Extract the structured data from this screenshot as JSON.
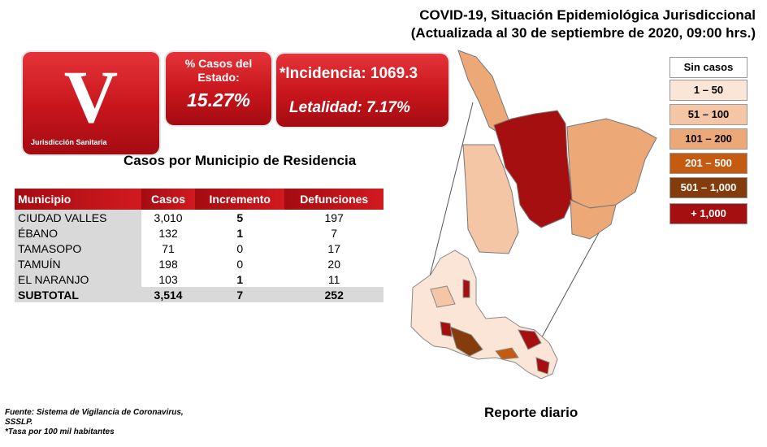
{
  "header": {
    "title_line1": "COVID-19, Situación Epidemiológica Jurisdiccional",
    "title_line2": "(Actualizada al 30 de septiembre de 2020, 09:00 hrs.)"
  },
  "jurisdiction": {
    "letter": "V",
    "label": "Jurisdicción Sanitaria"
  },
  "state_share": {
    "label": "% Casos del Estado:",
    "value": "15.27%"
  },
  "rates": {
    "incidence": "*Incidencia: 1069.3",
    "lethality": "Letalidad: 7.17%"
  },
  "table": {
    "title": "Casos por Municipio  de Residencia",
    "headers": [
      "Municipio",
      "Casos",
      "Incremento",
      "Defunciones"
    ],
    "rows": [
      {
        "municipio": "CIUDAD VALLES",
        "casos": "3,010",
        "incremento": "5",
        "defunciones": "197"
      },
      {
        "municipio": "ÉBANO",
        "casos": "132",
        "incremento": "1",
        "defunciones": "7"
      },
      {
        "municipio": "TAMASOPO",
        "casos": "71",
        "incremento": "0",
        "defunciones": "17"
      },
      {
        "municipio": "TAMUÍN",
        "casos": "198",
        "incremento": "0",
        "defunciones": "20"
      },
      {
        "municipio": "EL NARANJO",
        "casos": "103",
        "incremento": "1",
        "defunciones": "11"
      }
    ],
    "subtotal": {
      "label": "SUBTOTAL",
      "casos": "3,514",
      "incremento": "7",
      "defunciones": "252"
    }
  },
  "legend": [
    {
      "label": "Sin casos",
      "color": "#ffffff",
      "text_color": "#000000"
    },
    {
      "label": "1 – 50",
      "color": "#fbe5d6",
      "text_color": "#000000"
    },
    {
      "label": "51 – 100",
      "color": "#f4c6a6",
      "text_color": "#000000"
    },
    {
      "label": "101 – 200",
      "color": "#eda878",
      "text_color": "#000000"
    },
    {
      "label": "201 – 500",
      "color": "#c55a11",
      "text_color": "#ffffff"
    },
    {
      "label": "501 – 1,000",
      "color": "#843c0c",
      "text_color": "#ffffff"
    },
    {
      "label": "+ 1,000",
      "color": "#a50f0f",
      "text_color": "#ffffff"
    }
  ],
  "footer": {
    "source_line1": "Fuente: Sistema de Vigilancia  de Coronavirus,",
    "source_line2": "SSSLP.",
    "note": "*Tasa por 100 mil habitantes"
  },
  "report_label": "Reporte diario",
  "map": {
    "municipalities": [
      {
        "name": "CIUDAD VALLES",
        "color": "#a50f0f"
      },
      {
        "name": "ÉBANO",
        "color": "#eda878"
      },
      {
        "name": "TAMASOPO",
        "color": "#f4c6a6"
      },
      {
        "name": "TAMUÍN",
        "color": "#eda878"
      },
      {
        "name": "EL NARANJO",
        "color": "#eda878"
      }
    ]
  }
}
